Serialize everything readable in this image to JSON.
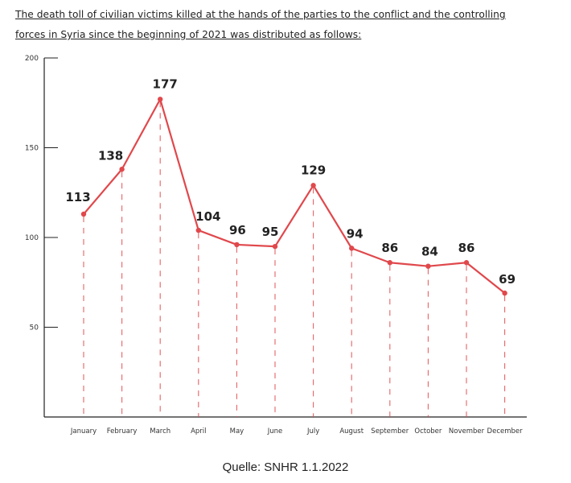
{
  "heading": {
    "line1": "The death toll of civilian victims killed at the hands of the parties to the conflict and the controlling",
    "line2": "forces in Syria since the beginning of 2021 was distributed as follows:"
  },
  "source_note": "Quelle: SNHR 1.1.2022",
  "colors": {
    "line": "#e0484c",
    "axis": "#222222"
  },
  "chart_data": {
    "type": "line",
    "title": "",
    "xlabel": "",
    "ylabel": "",
    "ylim": [
      0,
      200
    ],
    "yticks": [
      50,
      100,
      150,
      200
    ],
    "grid": false,
    "legend": "none",
    "categories": [
      "January",
      "February",
      "March",
      "April",
      "May",
      "June",
      "July",
      "August",
      "September",
      "October",
      "November",
      "December"
    ],
    "series": [
      {
        "values": [
          113,
          138,
          177,
          104,
          96,
          95,
          129,
          94,
          86,
          84,
          86,
          69
        ]
      }
    ]
  }
}
